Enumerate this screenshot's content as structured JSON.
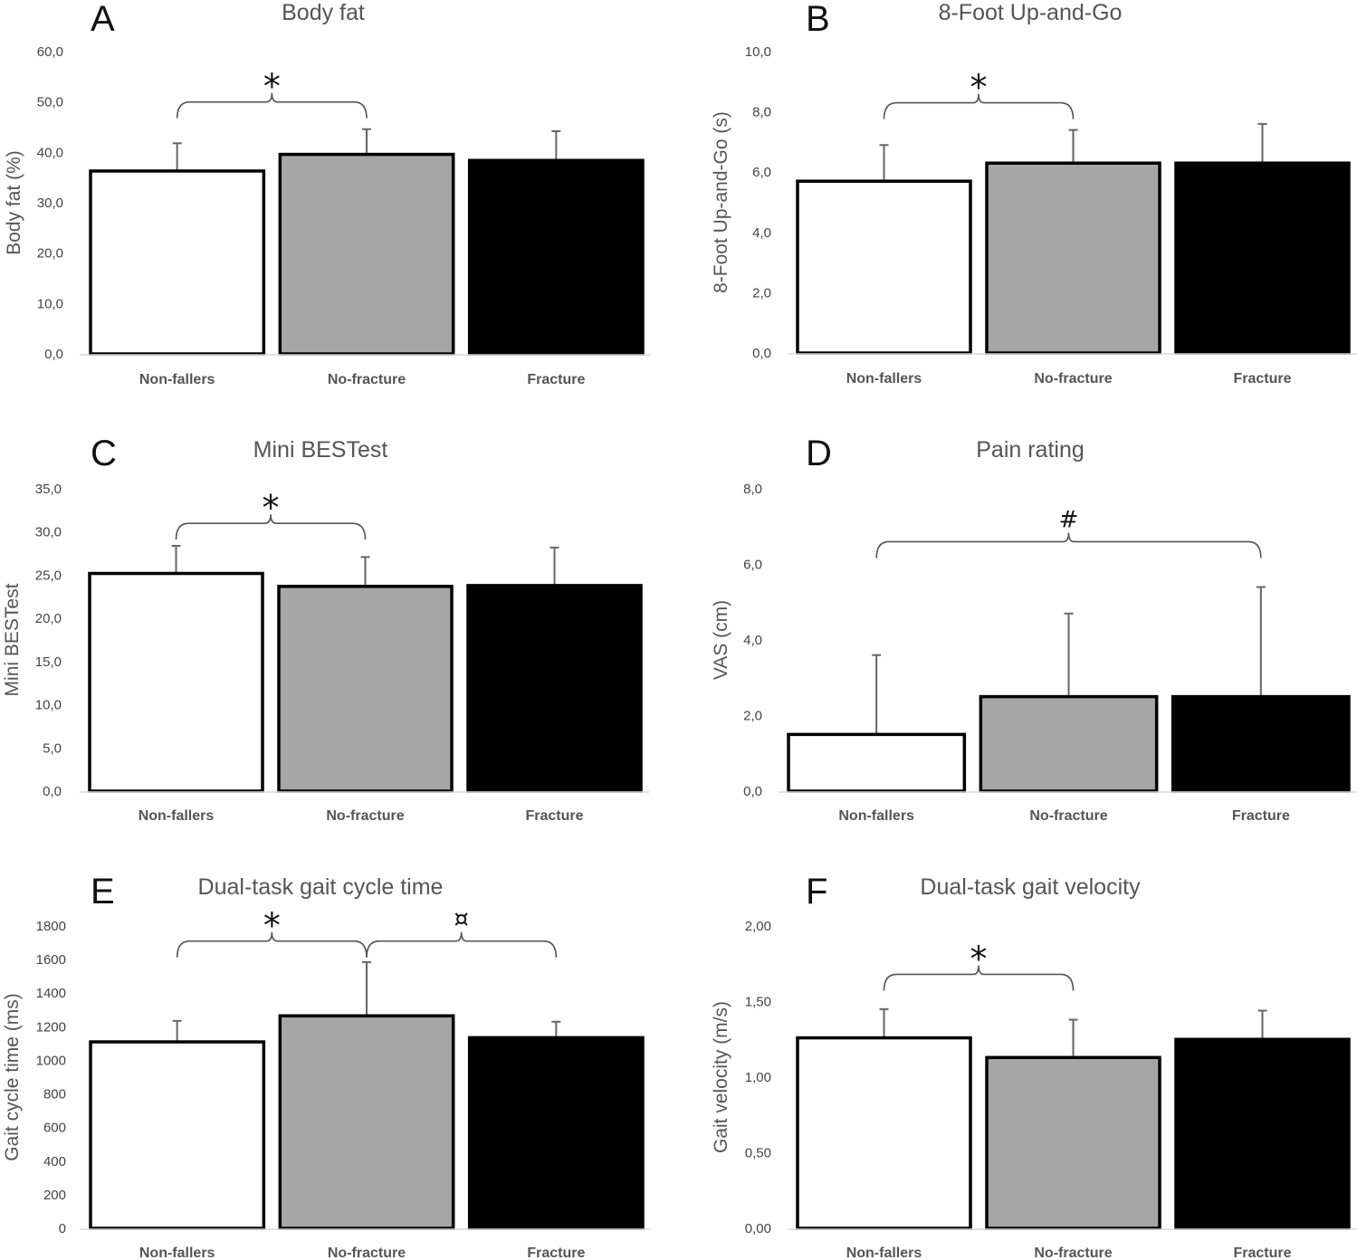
{
  "chart_data": [
    {
      "type": "bar",
      "panel": "A",
      "title": "Body fat",
      "ylabel": "Body fat (%)",
      "categories": [
        "Non-fallers",
        "No-fracture",
        "Fracture"
      ],
      "values": [
        36.3,
        39.6,
        38.4
      ],
      "errors": [
        5.5,
        5.0,
        5.8
      ],
      "ylim": [
        0,
        60
      ],
      "yticks": [
        "0,0",
        "10,0",
        "20,0",
        "30,0",
        "40,0",
        "50,0",
        "60,0"
      ],
      "colors": [
        "#ffffff",
        "#a6a6a6",
        "#000000"
      ],
      "brackets": [
        {
          "from": 0,
          "to": 1,
          "symbol": "*",
          "level": 50.0
        }
      ]
    },
    {
      "type": "bar",
      "panel": "B",
      "title": "8-Foot Up-and-Go",
      "ylabel": "8-Foot Up-and-Go (s)",
      "categories": [
        "Non-fallers",
        "No-fracture",
        "Fracture"
      ],
      "values": [
        5.7,
        6.3,
        6.3
      ],
      "errors": [
        1.2,
        1.1,
        1.3
      ],
      "ylim": [
        0,
        10
      ],
      "yticks": [
        "0,0",
        "2,0",
        "4,0",
        "6,0",
        "8,0",
        "10,0"
      ],
      "colors": [
        "#ffffff",
        "#a6a6a6",
        "#000000"
      ],
      "brackets": [
        {
          "from": 0,
          "to": 1,
          "symbol": "*",
          "level": 8.3
        }
      ]
    },
    {
      "type": "bar",
      "panel": "C",
      "title": "Mini BESTest",
      "ylabel": "Mini BESTest",
      "categories": [
        "Non-fallers",
        "No-fracture",
        "Fracture"
      ],
      "values": [
        25.2,
        23.7,
        23.8
      ],
      "errors": [
        3.2,
        3.4,
        4.4
      ],
      "ylim": [
        0,
        35
      ],
      "yticks": [
        "0,0",
        "5,0",
        "10,0",
        "15,0",
        "20,0",
        "25,0",
        "30,0",
        "35,0"
      ],
      "colors": [
        "#ffffff",
        "#a6a6a6",
        "#000000"
      ],
      "brackets": [
        {
          "from": 0,
          "to": 1,
          "symbol": "*",
          "level": 31.0
        }
      ]
    },
    {
      "type": "bar",
      "panel": "D",
      "title": "Pain rating",
      "ylabel": "VAS (cm)",
      "categories": [
        "Non-fallers",
        "No-fracture",
        "Fracture"
      ],
      "values": [
        1.5,
        2.5,
        2.5
      ],
      "errors": [
        2.1,
        2.2,
        2.9
      ],
      "ylim": [
        0,
        8
      ],
      "yticks": [
        "0,0",
        "2,0",
        "4,0",
        "6,0",
        "8,0"
      ],
      "colors": [
        "#ffffff",
        "#a6a6a6",
        "#000000"
      ],
      "brackets": [
        {
          "from": 0,
          "to": 2,
          "symbol": "#",
          "level": 6.6
        }
      ]
    },
    {
      "type": "bar",
      "panel": "E",
      "title": "Dual-task gait cycle time",
      "ylabel": "Gait cycle time (ms)",
      "categories": [
        "Non-fallers",
        "No-fracture",
        "Fracture"
      ],
      "values": [
        1110,
        1265,
        1135
      ],
      "errors": [
        125,
        320,
        95
      ],
      "ylim": [
        0,
        1800
      ],
      "yticks": [
        "0",
        "200",
        "400",
        "600",
        "800",
        "1000",
        "1200",
        "1400",
        "1600",
        "1800"
      ],
      "colors": [
        "#ffffff",
        "#a6a6a6",
        "#000000"
      ],
      "brackets": [
        {
          "from": 0,
          "to": 1,
          "symbol": "*",
          "level": 1710
        },
        {
          "from": 1,
          "to": 2,
          "symbol": "¤",
          "level": 1710
        }
      ]
    },
    {
      "type": "bar",
      "panel": "F",
      "title": "Dual-task gait velocity",
      "ylabel": "Gait velocity (m/s)",
      "categories": [
        "Non-fallers",
        "No-fracture",
        "Fracture"
      ],
      "values": [
        1.26,
        1.13,
        1.25
      ],
      "errors": [
        0.19,
        0.25,
        0.19
      ],
      "ylim": [
        0,
        2
      ],
      "yticks": [
        "0,00",
        "0,50",
        "1,00",
        "1,50",
        "2,00"
      ],
      "colors": [
        "#ffffff",
        "#a6a6a6",
        "#000000"
      ],
      "brackets": [
        {
          "from": 0,
          "to": 1,
          "symbol": "*",
          "level": 1.68
        }
      ]
    }
  ]
}
